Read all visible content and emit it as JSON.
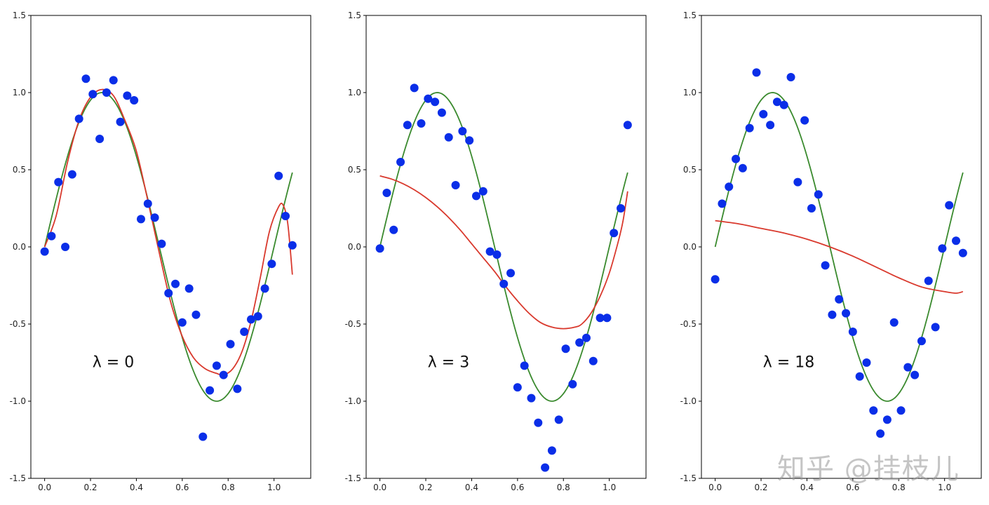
{
  "chart_data": [
    {
      "type": "scatter",
      "annotation": "λ = 0",
      "xlim": [
        -0.06,
        1.16
      ],
      "ylim": [
        -1.5,
        1.5
      ],
      "xticks": [
        "0.0",
        "0.2",
        "0.4",
        "0.6",
        "0.8",
        "1.0"
      ],
      "yticks": [
        "-1.5",
        "-1.0",
        "-0.5",
        "0.0",
        "0.5",
        "1.0",
        "1.5"
      ],
      "colors": {
        "points": "#0a2ee8",
        "true_curve": "#3a8a2e",
        "fit_curve": "#d9392d"
      },
      "points": [
        [
          0.0,
          -0.03
        ],
        [
          0.03,
          0.07
        ],
        [
          0.06,
          0.42
        ],
        [
          0.09,
          0.0
        ],
        [
          0.12,
          0.47
        ],
        [
          0.15,
          0.83
        ],
        [
          0.18,
          1.09
        ],
        [
          0.21,
          0.99
        ],
        [
          0.24,
          0.7
        ],
        [
          0.27,
          1.0
        ],
        [
          0.3,
          1.08
        ],
        [
          0.33,
          0.81
        ],
        [
          0.36,
          0.98
        ],
        [
          0.39,
          0.95
        ],
        [
          0.42,
          0.18
        ],
        [
          0.45,
          0.28
        ],
        [
          0.48,
          0.19
        ],
        [
          0.51,
          0.02
        ],
        [
          0.54,
          -0.3
        ],
        [
          0.57,
          -0.24
        ],
        [
          0.6,
          -0.49
        ],
        [
          0.63,
          -0.27
        ],
        [
          0.66,
          -0.44
        ],
        [
          0.69,
          -1.23
        ],
        [
          0.72,
          -0.93
        ],
        [
          0.75,
          -0.77
        ],
        [
          0.78,
          -0.83
        ],
        [
          0.81,
          -0.63
        ],
        [
          0.84,
          -0.92
        ],
        [
          0.87,
          -0.55
        ],
        [
          0.9,
          -0.47
        ],
        [
          0.93,
          -0.45
        ],
        [
          0.96,
          -0.27
        ],
        [
          0.99,
          -0.11
        ],
        [
          1.02,
          0.46
        ],
        [
          1.05,
          0.2
        ],
        [
          1.08,
          0.01
        ]
      ],
      "true_curve": {
        "x_range": [
          0.0,
          1.08
        ]
      },
      "fit_curve": [
        [
          0.0,
          0.0
        ],
        [
          0.05,
          0.2
        ],
        [
          0.1,
          0.55
        ],
        [
          0.15,
          0.82
        ],
        [
          0.2,
          0.97
        ],
        [
          0.25,
          1.02
        ],
        [
          0.3,
          0.98
        ],
        [
          0.35,
          0.82
        ],
        [
          0.4,
          0.62
        ],
        [
          0.45,
          0.3
        ],
        [
          0.5,
          -0.04
        ],
        [
          0.55,
          -0.36
        ],
        [
          0.6,
          -0.58
        ],
        [
          0.65,
          -0.72
        ],
        [
          0.7,
          -0.79
        ],
        [
          0.75,
          -0.82
        ],
        [
          0.78,
          -0.83
        ],
        [
          0.82,
          -0.79
        ],
        [
          0.86,
          -0.68
        ],
        [
          0.9,
          -0.48
        ],
        [
          0.94,
          -0.2
        ],
        [
          0.98,
          0.1
        ],
        [
          1.02,
          0.26
        ],
        [
          1.04,
          0.27
        ],
        [
          1.06,
          0.15
        ],
        [
          1.08,
          -0.18
        ]
      ]
    },
    {
      "type": "scatter",
      "annotation": "λ = 3",
      "xlim": [
        -0.06,
        1.16
      ],
      "ylim": [
        -1.5,
        1.5
      ],
      "xticks": [
        "0.0",
        "0.2",
        "0.4",
        "0.6",
        "0.8",
        "1.0"
      ],
      "yticks": [
        "-1.5",
        "-1.0",
        "-0.5",
        "0.0",
        "0.5",
        "1.0",
        "1.5"
      ],
      "colors": {
        "points": "#0a2ee8",
        "true_curve": "#3a8a2e",
        "fit_curve": "#d9392d"
      },
      "points": [
        [
          0.0,
          -0.01
        ],
        [
          0.03,
          0.35
        ],
        [
          0.06,
          0.11
        ],
        [
          0.09,
          0.55
        ],
        [
          0.12,
          0.79
        ],
        [
          0.15,
          1.03
        ],
        [
          0.18,
          0.8
        ],
        [
          0.21,
          0.96
        ],
        [
          0.24,
          0.94
        ],
        [
          0.27,
          0.87
        ],
        [
          0.3,
          0.71
        ],
        [
          0.33,
          0.4
        ],
        [
          0.36,
          0.75
        ],
        [
          0.39,
          0.69
        ],
        [
          0.42,
          0.33
        ],
        [
          0.45,
          0.36
        ],
        [
          0.48,
          -0.03
        ],
        [
          0.51,
          -0.05
        ],
        [
          0.54,
          -0.24
        ],
        [
          0.57,
          -0.17
        ],
        [
          0.6,
          -0.91
        ],
        [
          0.63,
          -0.77
        ],
        [
          0.66,
          -0.98
        ],
        [
          0.69,
          -1.14
        ],
        [
          0.72,
          -1.43
        ],
        [
          0.75,
          -1.32
        ],
        [
          0.78,
          -1.12
        ],
        [
          0.81,
          -0.66
        ],
        [
          0.84,
          -0.89
        ],
        [
          0.87,
          -0.62
        ],
        [
          0.9,
          -0.59
        ],
        [
          0.93,
          -0.74
        ],
        [
          0.96,
          -0.46
        ],
        [
          0.99,
          -0.46
        ],
        [
          1.02,
          0.09
        ],
        [
          1.05,
          0.25
        ],
        [
          1.08,
          0.79
        ]
      ],
      "true_curve": {
        "x_range": [
          0.0,
          1.08
        ]
      },
      "fit_curve": [
        [
          0.0,
          0.46
        ],
        [
          0.05,
          0.44
        ],
        [
          0.1,
          0.41
        ],
        [
          0.15,
          0.37
        ],
        [
          0.2,
          0.32
        ],
        [
          0.25,
          0.26
        ],
        [
          0.3,
          0.19
        ],
        [
          0.35,
          0.11
        ],
        [
          0.4,
          0.02
        ],
        [
          0.45,
          -0.07
        ],
        [
          0.5,
          -0.16
        ],
        [
          0.55,
          -0.26
        ],
        [
          0.6,
          -0.35
        ],
        [
          0.65,
          -0.43
        ],
        [
          0.7,
          -0.49
        ],
        [
          0.75,
          -0.52
        ],
        [
          0.8,
          -0.53
        ],
        [
          0.85,
          -0.52
        ],
        [
          0.88,
          -0.5
        ],
        [
          0.92,
          -0.43
        ],
        [
          0.96,
          -0.32
        ],
        [
          1.0,
          -0.17
        ],
        [
          1.04,
          0.04
        ],
        [
          1.06,
          0.17
        ],
        [
          1.08,
          0.36
        ]
      ]
    },
    {
      "type": "scatter",
      "annotation": "λ = 18",
      "xlim": [
        -0.06,
        1.16
      ],
      "ylim": [
        -1.5,
        1.5
      ],
      "xticks": [
        "0.0",
        "0.2",
        "0.4",
        "0.6",
        "0.8",
        "1.0"
      ],
      "yticks": [
        "-1.5",
        "-1.0",
        "-0.5",
        "0.0",
        "0.5",
        "1.0",
        "1.5"
      ],
      "colors": {
        "points": "#0a2ee8",
        "true_curve": "#3a8a2e",
        "fit_curve": "#d9392d"
      },
      "points": [
        [
          0.0,
          -0.21
        ],
        [
          0.03,
          0.28
        ],
        [
          0.06,
          0.39
        ],
        [
          0.09,
          0.57
        ],
        [
          0.12,
          0.51
        ],
        [
          0.15,
          0.77
        ],
        [
          0.18,
          1.13
        ],
        [
          0.21,
          0.86
        ],
        [
          0.24,
          0.79
        ],
        [
          0.27,
          0.94
        ],
        [
          0.3,
          0.92
        ],
        [
          0.33,
          1.1
        ],
        [
          0.36,
          0.42
        ],
        [
          0.39,
          0.82
        ],
        [
          0.42,
          0.25
        ],
        [
          0.45,
          0.34
        ],
        [
          0.48,
          -0.12
        ],
        [
          0.51,
          -0.44
        ],
        [
          0.54,
          -0.34
        ],
        [
          0.57,
          -0.43
        ],
        [
          0.6,
          -0.55
        ],
        [
          0.63,
          -0.84
        ],
        [
          0.66,
          -0.75
        ],
        [
          0.69,
          -1.06
        ],
        [
          0.72,
          -1.21
        ],
        [
          0.75,
          -1.12
        ],
        [
          0.78,
          -0.49
        ],
        [
          0.81,
          -1.06
        ],
        [
          0.84,
          -0.78
        ],
        [
          0.87,
          -0.83
        ],
        [
          0.9,
          -0.61
        ],
        [
          0.93,
          -0.22
        ],
        [
          0.96,
          -0.52
        ],
        [
          0.99,
          -0.01
        ],
        [
          1.02,
          0.27
        ],
        [
          1.05,
          0.04
        ],
        [
          1.08,
          -0.04
        ]
      ],
      "true_curve": {
        "x_range": [
          0.0,
          1.08
        ]
      },
      "fit_curve": [
        [
          0.0,
          0.17
        ],
        [
          0.1,
          0.15
        ],
        [
          0.2,
          0.12
        ],
        [
          0.3,
          0.09
        ],
        [
          0.4,
          0.05
        ],
        [
          0.5,
          0.0
        ],
        [
          0.6,
          -0.06
        ],
        [
          0.7,
          -0.13
        ],
        [
          0.8,
          -0.2
        ],
        [
          0.9,
          -0.26
        ],
        [
          1.0,
          -0.29
        ],
        [
          1.05,
          -0.3
        ],
        [
          1.08,
          -0.29
        ]
      ]
    }
  ],
  "watermark": "知乎 @挂枝儿"
}
